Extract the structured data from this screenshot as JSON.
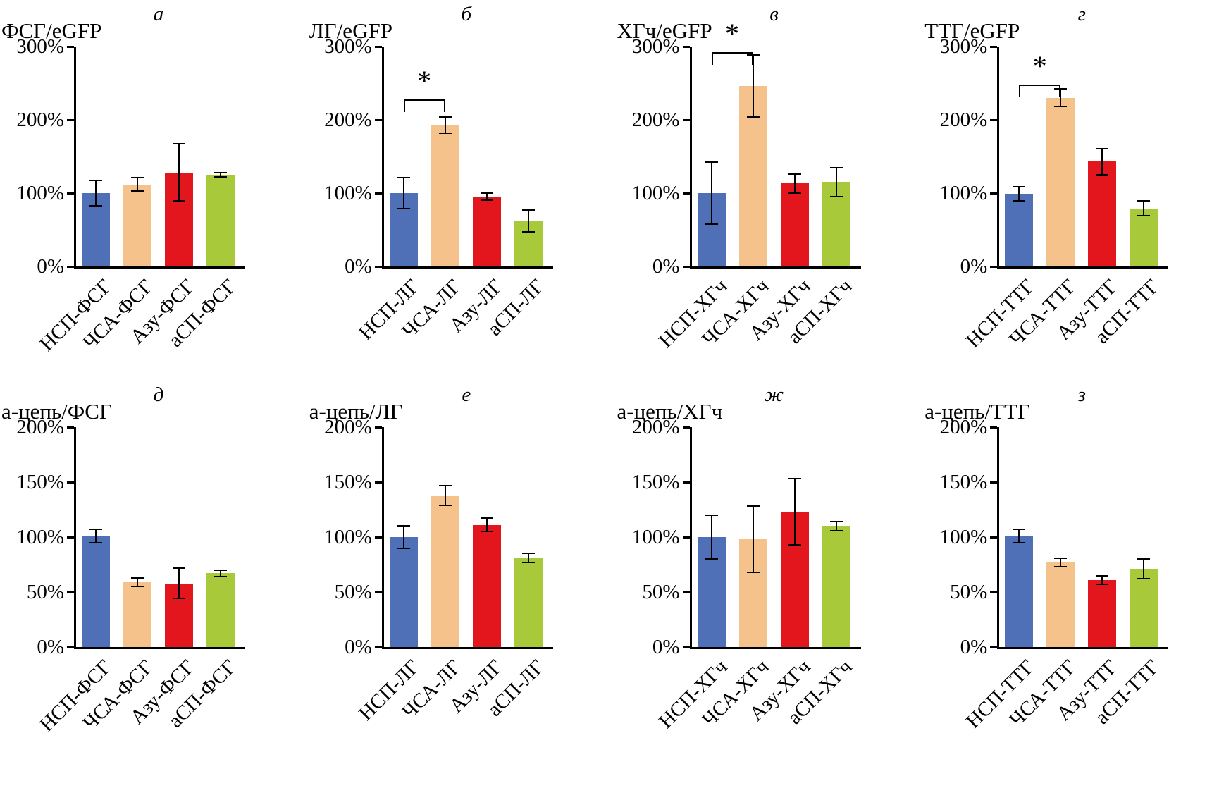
{
  "figure": {
    "background": "#ffffff",
    "axis_color": "#000000",
    "error_bar_color": "#000000",
    "bar_colors": [
      "#4f6fb7",
      "#f6c28b",
      "#e2161c",
      "#a8ca3a"
    ]
  },
  "chart_data": [
    {
      "type": "bar",
      "panel_letter": "а",
      "title": "ФСГ/eGFP",
      "categories": [
        "НСП-ФСГ",
        "ЧСА-ФСГ",
        "Азу-ФСГ",
        "аСП-ФСГ"
      ],
      "values": [
        100,
        112,
        128,
        125
      ],
      "errors": [
        17,
        9,
        39,
        3
      ],
      "ylim": [
        0,
        300
      ],
      "yticks": [
        0,
        100,
        200,
        300
      ],
      "ytick_labels": [
        "0%",
        "100%",
        "200%",
        "300%"
      ],
      "significance": null
    },
    {
      "type": "bar",
      "panel_letter": "б",
      "title": "ЛГ/eGFP",
      "categories": [
        "НСП-ЛГ",
        "ЧСА-ЛГ",
        "Азу-ЛГ",
        "аСП-ЛГ"
      ],
      "values": [
        100,
        193,
        95,
        62
      ],
      "errors": [
        21,
        11,
        5,
        15
      ],
      "ylim": [
        0,
        300
      ],
      "yticks": [
        0,
        100,
        200,
        300
      ],
      "ytick_labels": [
        "0%",
        "100%",
        "200%",
        "300%"
      ],
      "significance": {
        "from": 0,
        "to": 1,
        "y": 228,
        "label": "*"
      }
    },
    {
      "type": "bar",
      "panel_letter": "в",
      "title": "ХГч/eGFP",
      "categories": [
        "НСП-ХГч",
        "ЧСА-ХГч",
        "Азу-ХГч",
        "аСП-ХГч"
      ],
      "values": [
        100,
        246,
        113,
        115
      ],
      "errors": [
        42,
        42,
        13,
        20
      ],
      "ylim": [
        0,
        300
      ],
      "yticks": [
        0,
        100,
        200,
        300
      ],
      "ytick_labels": [
        "0%",
        "100%",
        "200%",
        "300%"
      ],
      "significance": {
        "from": 0,
        "to": 1,
        "y": 292,
        "label": "*"
      }
    },
    {
      "type": "bar",
      "panel_letter": "г",
      "title": "ТТГ/eGFP",
      "categories": [
        "НСП-ТТГ",
        "ЧСА-ТТГ",
        "Азу-ТТГ",
        "аСП-ТТГ"
      ],
      "values": [
        99,
        230,
        143,
        79
      ],
      "errors": [
        10,
        12,
        18,
        10
      ],
      "ylim": [
        0,
        300
      ],
      "yticks": [
        0,
        100,
        200,
        300
      ],
      "ytick_labels": [
        "0%",
        "100%",
        "200%",
        "300%"
      ],
      "significance": {
        "from": 0,
        "to": 1,
        "y": 248,
        "label": "*"
      }
    },
    {
      "type": "bar",
      "panel_letter": "д",
      "title": "а-цепь/ФСГ",
      "categories": [
        "НСП-ФСГ",
        "ЧСА-ФСГ",
        "Азу-ФСГ",
        "аСП-ФСГ"
      ],
      "values": [
        101,
        59,
        58,
        67
      ],
      "errors": [
        6,
        4,
        14,
        3
      ],
      "ylim": [
        0,
        200
      ],
      "yticks": [
        0,
        50,
        100,
        150,
        200
      ],
      "ytick_labels": [
        "0%",
        "50%",
        "100%",
        "150%",
        "200%"
      ],
      "significance": null
    },
    {
      "type": "bar",
      "panel_letter": "е",
      "title": "а-цепь/ЛГ",
      "categories": [
        "НСП-ЛГ",
        "ЧСА-ЛГ",
        "Азу-ЛГ",
        "аСП-ЛГ"
      ],
      "values": [
        100,
        138,
        111,
        81
      ],
      "errors": [
        10,
        9,
        6,
        4
      ],
      "ylim": [
        0,
        200
      ],
      "yticks": [
        0,
        50,
        100,
        150,
        200
      ],
      "ytick_labels": [
        "0%",
        "50%",
        "100%",
        "150%",
        "200%"
      ],
      "significance": null
    },
    {
      "type": "bar",
      "panel_letter": "ж",
      "title": "а-цепь/ХГч",
      "categories": [
        "НСП-ХГч",
        "ЧСА-ХГч",
        "Азу-ХГч",
        "аСП-ХГч"
      ],
      "values": [
        100,
        98,
        123,
        110
      ],
      "errors": [
        20,
        30,
        30,
        4
      ],
      "ylim": [
        0,
        200
      ],
      "yticks": [
        0,
        50,
        100,
        150,
        200
      ],
      "ytick_labels": [
        "0%",
        "50%",
        "100%",
        "150%",
        "200%"
      ],
      "significance": null
    },
    {
      "type": "bar",
      "panel_letter": "з",
      "title": "а-цепь/ТТГ",
      "categories": [
        "НСП-ТТГ",
        "ЧСА-ТТГ",
        "Азу-ТТГ",
        "аСП-ТТГ"
      ],
      "values": [
        101,
        77,
        61,
        71
      ],
      "errors": [
        6,
        4,
        4,
        9
      ],
      "ylim": [
        0,
        200
      ],
      "yticks": [
        0,
        50,
        100,
        150,
        200
      ],
      "ytick_labels": [
        "0%",
        "50%",
        "100%",
        "150%",
        "200%"
      ],
      "significance": null
    }
  ]
}
